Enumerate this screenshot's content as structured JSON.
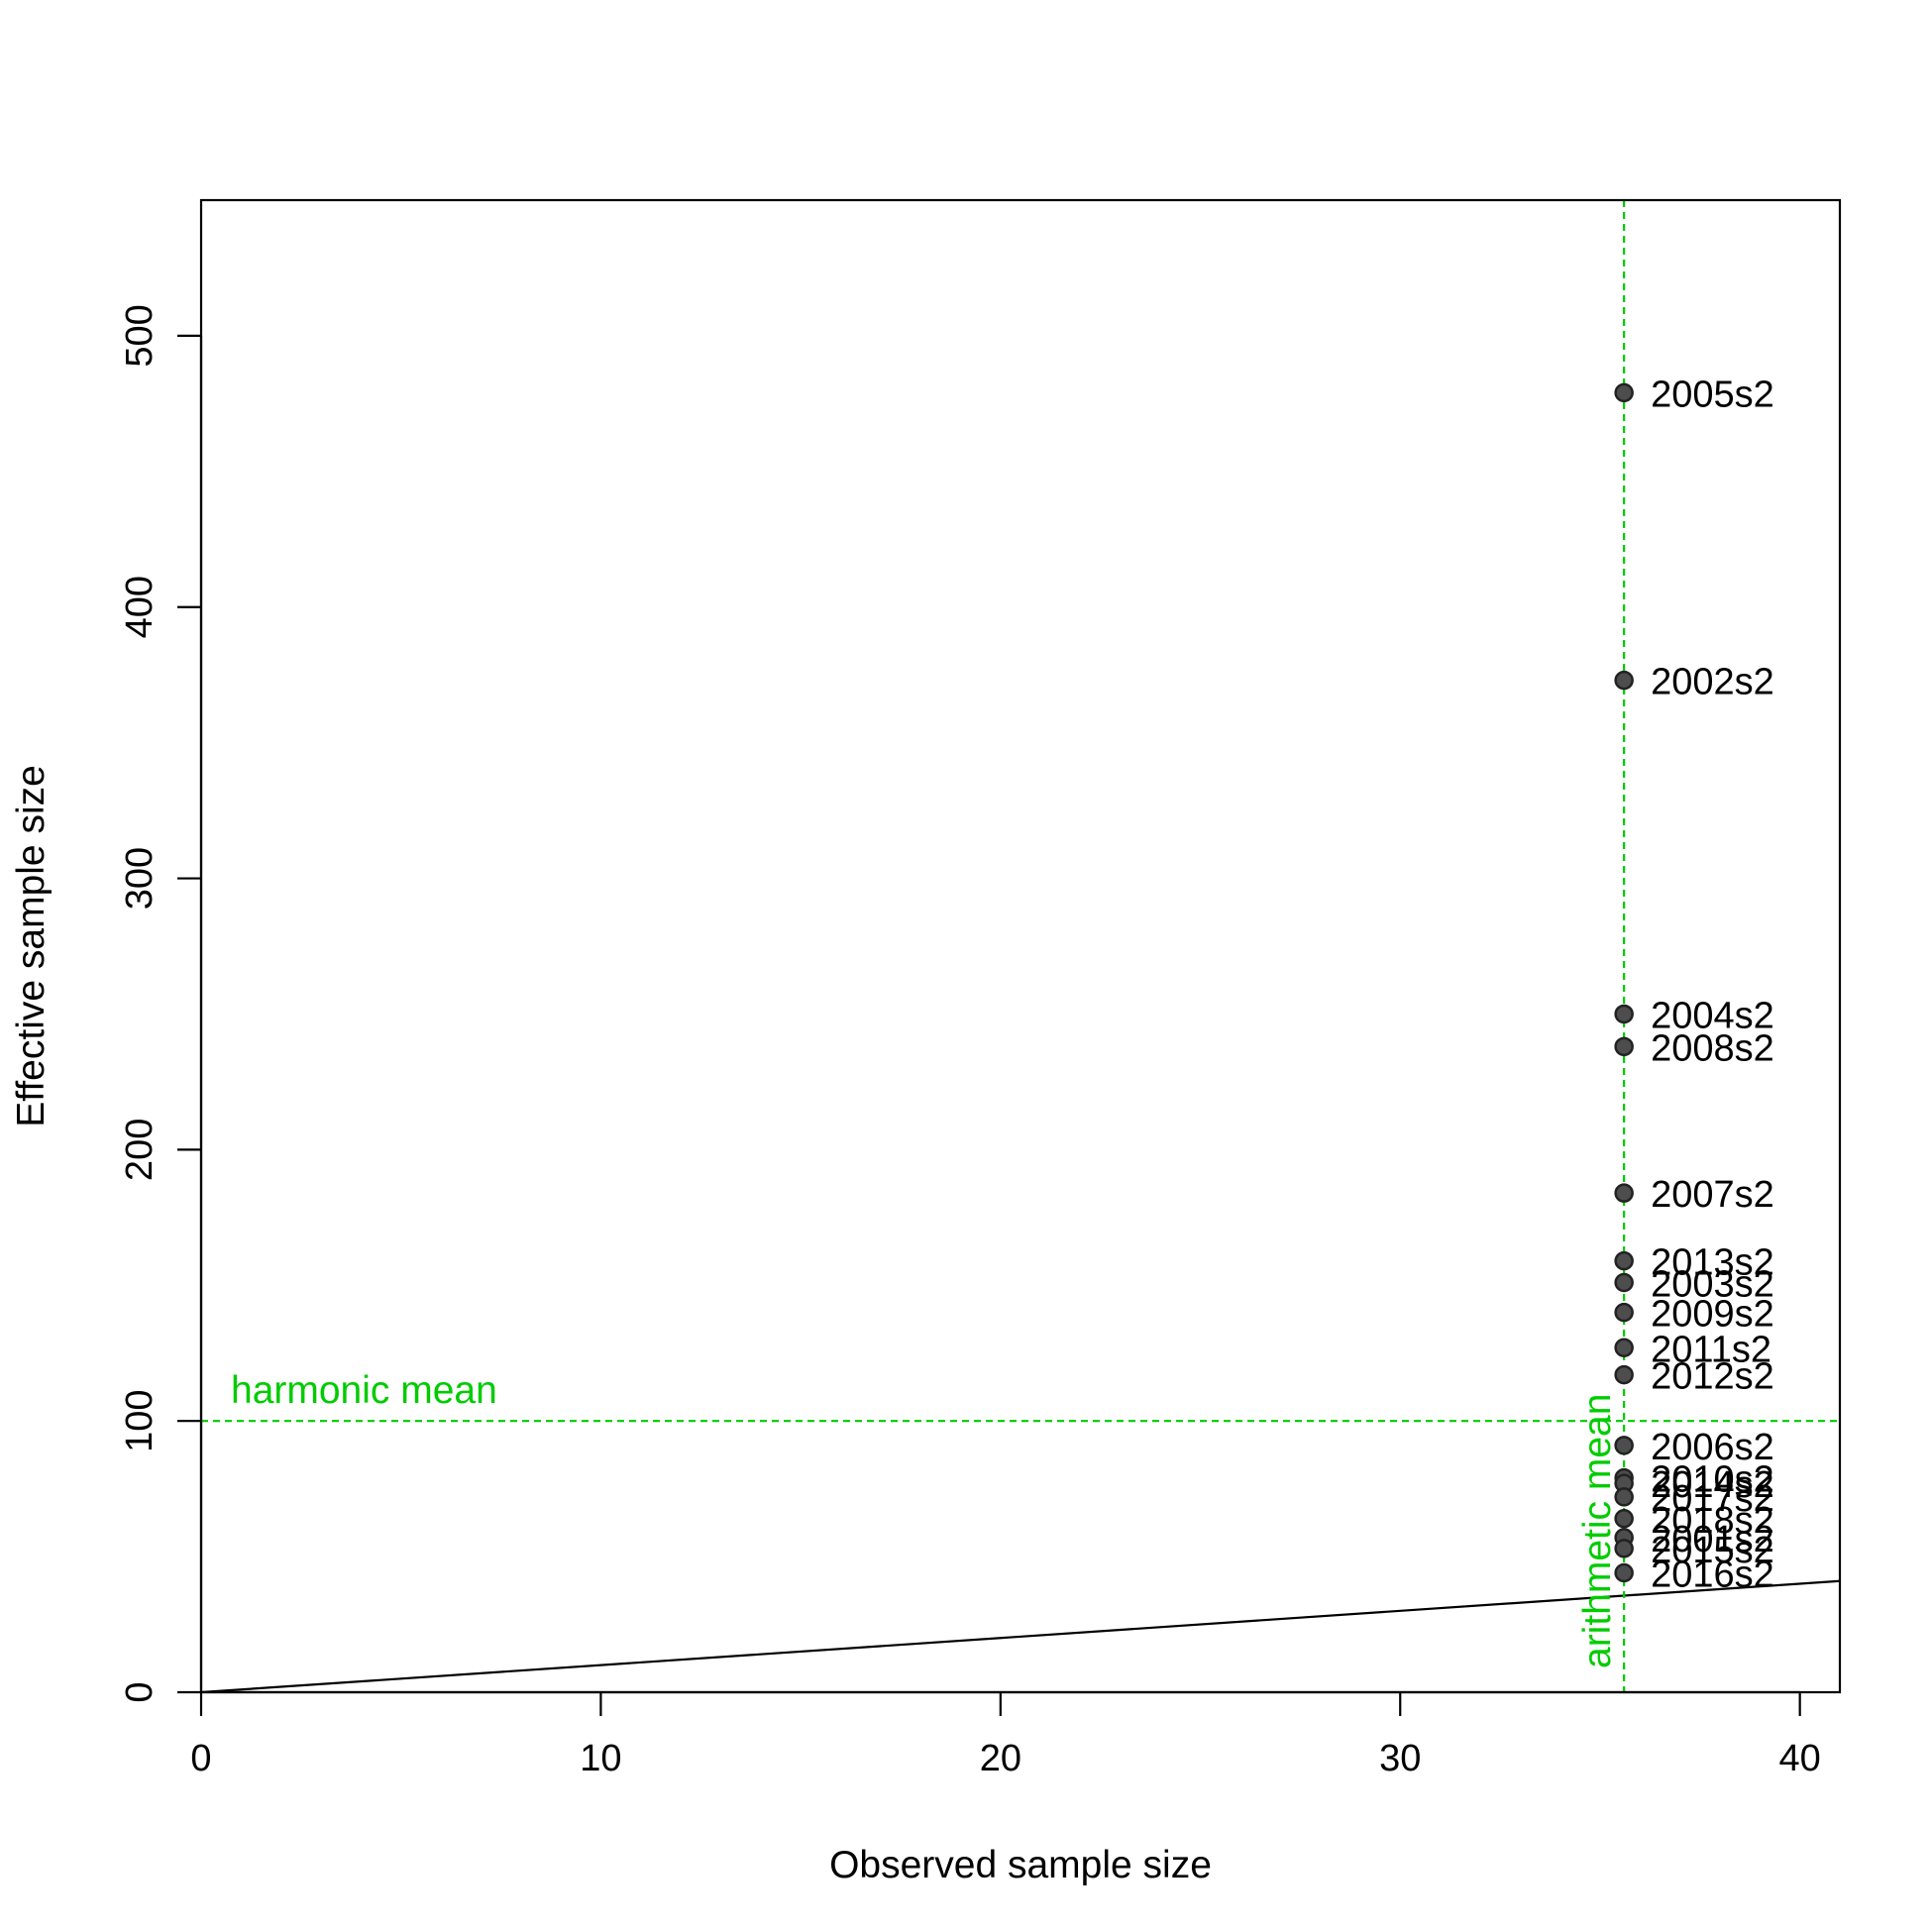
{
  "colors": {
    "reference": "#00cc00",
    "point_fill": "#4d4d4d",
    "point_stroke": "#222222",
    "axis": "#000000"
  },
  "chart_data": {
    "type": "scatter",
    "xlabel": "Observed sample size",
    "ylabel": "Effective sample size",
    "xlim": [
      0,
      41
    ],
    "ylim": [
      0,
      550
    ],
    "xticks": [
      0,
      10,
      20,
      30,
      40
    ],
    "yticks": [
      0,
      100,
      200,
      300,
      400,
      500
    ],
    "grid": false,
    "points": [
      {
        "label": "2005s2",
        "x": 35.6,
        "y": 479
      },
      {
        "label": "2002s2",
        "x": 35.6,
        "y": 373
      },
      {
        "label": "2004s2",
        "x": 35.6,
        "y": 250
      },
      {
        "label": "2008s2",
        "x": 35.6,
        "y": 238
      },
      {
        "label": "2007s2",
        "x": 35.6,
        "y": 184
      },
      {
        "label": "2013s2",
        "x": 35.6,
        "y": 159
      },
      {
        "label": "2003s2",
        "x": 35.6,
        "y": 151
      },
      {
        "label": "2009s2",
        "x": 35.6,
        "y": 140
      },
      {
        "label": "2011s2",
        "x": 35.6,
        "y": 127
      },
      {
        "label": "2012s2",
        "x": 35.6,
        "y": 117
      },
      {
        "label": "2006s2",
        "x": 35.6,
        "y": 91
      },
      {
        "label": "2010s2",
        "x": 35.6,
        "y": 79
      },
      {
        "label": "2014s2",
        "x": 35.6,
        "y": 77
      },
      {
        "label": "2017s2",
        "x": 35.6,
        "y": 72
      },
      {
        "label": "2018s2",
        "x": 35.6,
        "y": 64
      },
      {
        "label": "2001s2",
        "x": 35.6,
        "y": 57
      },
      {
        "label": "2015s2",
        "x": 35.6,
        "y": 53
      },
      {
        "label": "2016s2",
        "x": 35.6,
        "y": 44
      }
    ],
    "identity_line": {
      "from": [
        0,
        0
      ],
      "to": [
        41,
        41
      ]
    },
    "reference_lines": [
      {
        "orientation": "horizontal",
        "value": 100,
        "label": "harmonic mean"
      },
      {
        "orientation": "vertical",
        "value": 35.6,
        "label": "arithmetic mean"
      }
    ]
  }
}
